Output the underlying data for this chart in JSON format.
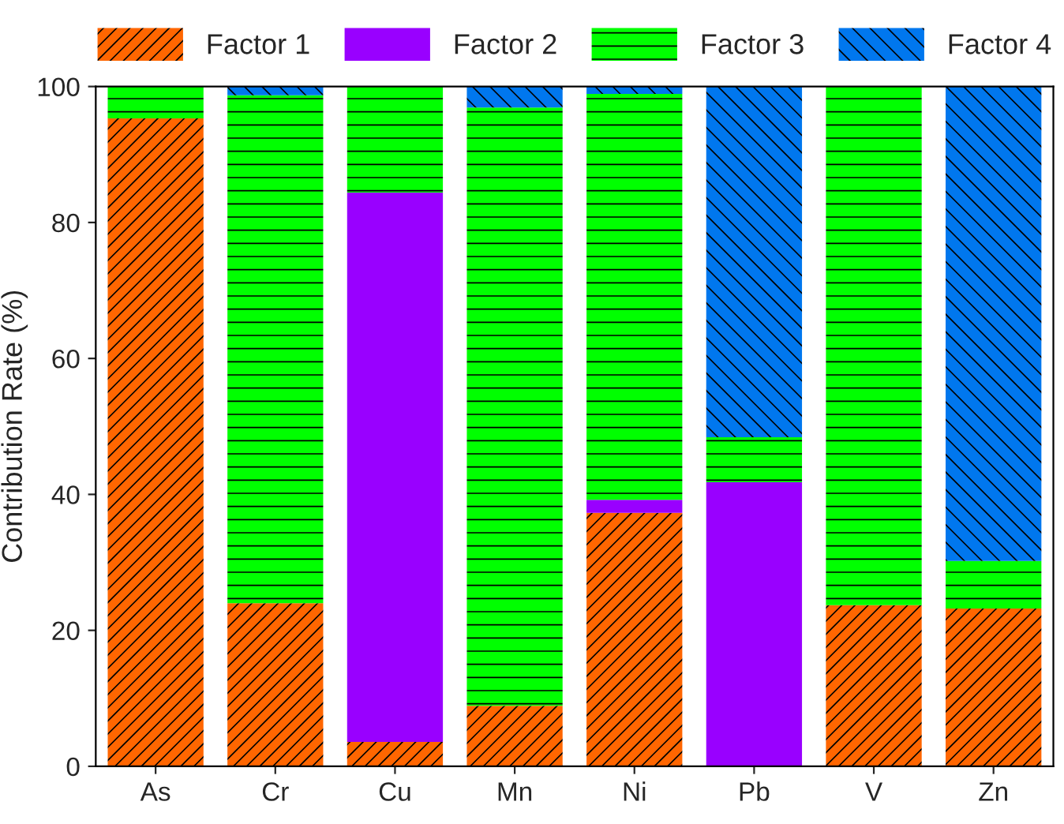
{
  "chart_data": {
    "type": "bar",
    "stacked": true,
    "ylabel": "Contribution Rate (%)",
    "categories": [
      "As",
      "Cr",
      "Cu",
      "Mn",
      "Ni",
      "Pb",
      "V",
      "Zn"
    ],
    "series": [
      {
        "name": "Factor 1",
        "color": "#ff6600",
        "values": [
          95.3,
          24.0,
          3.6,
          8.9,
          37.3,
          0,
          23.7,
          23.2
        ]
      },
      {
        "name": "Factor 2",
        "color": "#9900ff",
        "values": [
          0,
          0,
          80.8,
          0,
          1.9,
          41.8,
          0,
          0
        ]
      },
      {
        "name": "Factor 3",
        "color": "#00ff00",
        "values": [
          4.7,
          74.7,
          15.6,
          88.0,
          59.7,
          6.6,
          76.3,
          7.0
        ]
      },
      {
        "name": "Factor 4",
        "color": "#0077ee",
        "values": [
          0,
          1.3,
          0,
          3.1,
          1.1,
          51.6,
          0,
          69.8
        ]
      }
    ],
    "ylim": [
      0,
      100
    ],
    "yticks": [
      0,
      20,
      40,
      60,
      80,
      100
    ],
    "grid": false,
    "legend": "top"
  }
}
